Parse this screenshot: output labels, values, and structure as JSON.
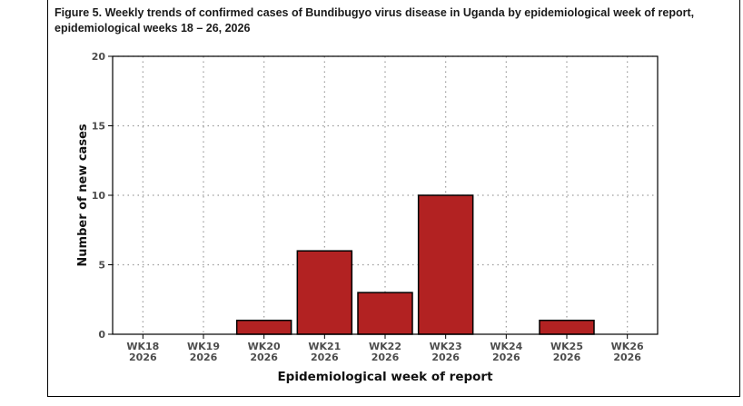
{
  "figure": {
    "title": "Figure 5.  Weekly trends of confirmed cases of Bundibugyo virus disease in Uganda by epidemiological week of report, epidemiological weeks 18 – 26, 2026"
  },
  "chart_data": {
    "type": "bar",
    "categories": [
      [
        "WK18",
        "2026"
      ],
      [
        "WK19",
        "2026"
      ],
      [
        "WK20",
        "2026"
      ],
      [
        "WK21",
        "2026"
      ],
      [
        "WK22",
        "2026"
      ],
      [
        "WK23",
        "2026"
      ],
      [
        "WK24",
        "2026"
      ],
      [
        "WK25",
        "2026"
      ],
      [
        "WK26",
        "2026"
      ]
    ],
    "values": [
      0,
      0,
      1,
      6,
      3,
      10,
      0,
      1,
      0
    ],
    "xlabel": "Epidemiological week of report",
    "ylabel": "Number of new cases",
    "ylim": [
      0,
      20
    ],
    "yticks": [
      0,
      5,
      10,
      15,
      20
    ],
    "grid": true,
    "grid_style": "dotted",
    "bar_color": "#b22222",
    "bar_edge_color": "#000000",
    "legend": "none"
  }
}
